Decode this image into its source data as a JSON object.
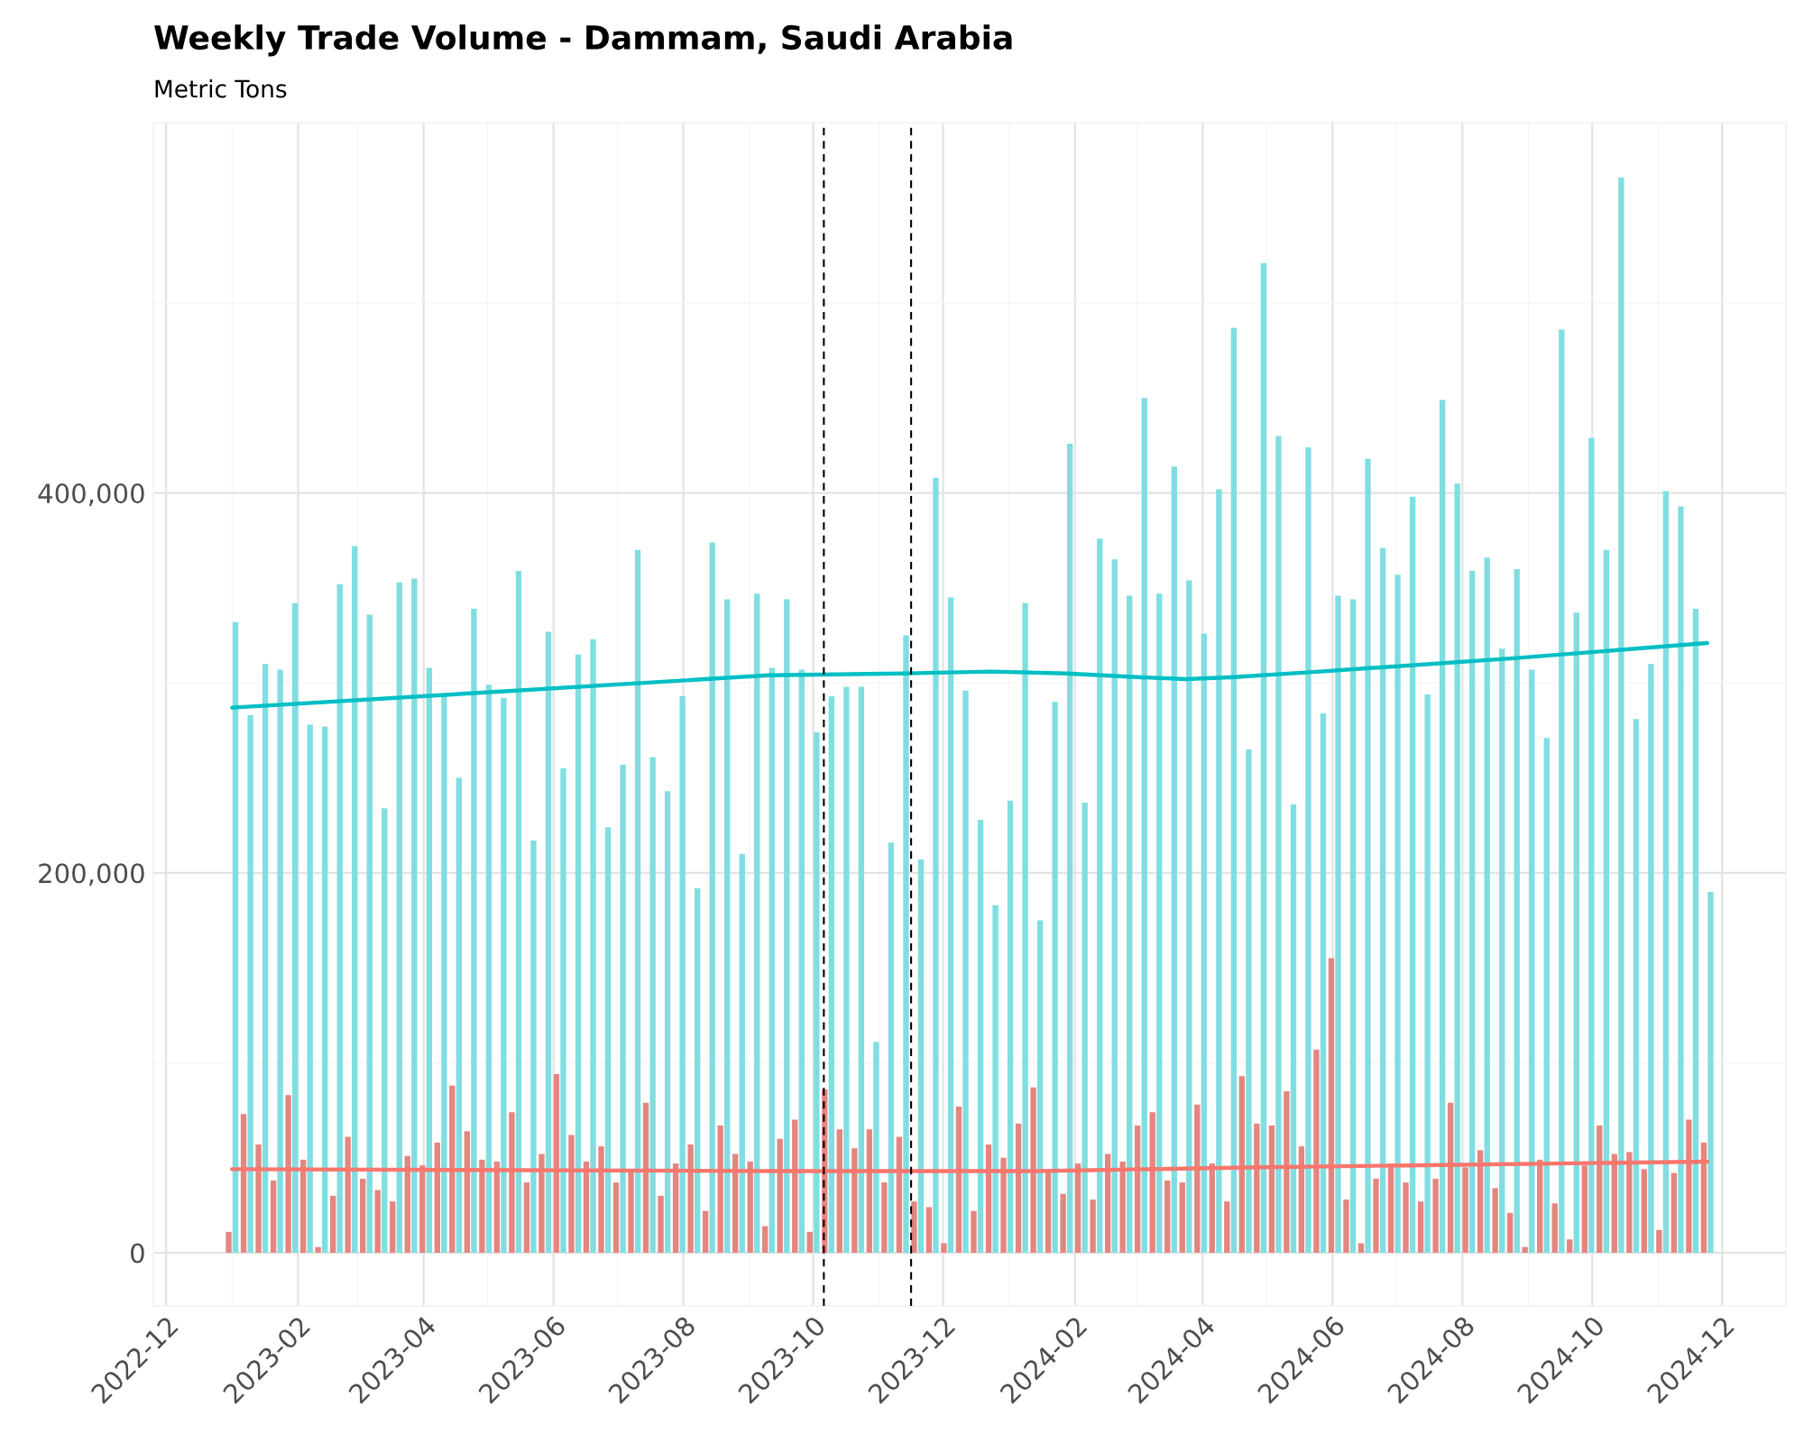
{
  "chart_data": {
    "type": "bar",
    "title": "Weekly Trade Volume - Dammam, Saudi Arabia",
    "subtitle": "Metric Tons",
    "x": [
      "2023-01-01",
      "2023-01-08",
      "2023-01-15",
      "2023-01-22",
      "2023-01-29",
      "2023-02-05",
      "2023-02-12",
      "2023-02-19",
      "2023-02-26",
      "2023-03-05",
      "2023-03-12",
      "2023-03-19",
      "2023-03-26",
      "2023-04-02",
      "2023-04-09",
      "2023-04-16",
      "2023-04-23",
      "2023-04-30",
      "2023-05-07",
      "2023-05-14",
      "2023-05-21",
      "2023-05-28",
      "2023-06-04",
      "2023-06-11",
      "2023-06-18",
      "2023-06-25",
      "2023-07-02",
      "2023-07-09",
      "2023-07-16",
      "2023-07-23",
      "2023-07-30",
      "2023-08-06",
      "2023-08-13",
      "2023-08-20",
      "2023-08-27",
      "2023-09-03",
      "2023-09-10",
      "2023-09-17",
      "2023-09-24",
      "2023-10-01",
      "2023-10-08",
      "2023-10-15",
      "2023-10-22",
      "2023-10-29",
      "2023-11-05",
      "2023-11-12",
      "2023-11-19",
      "2023-11-26",
      "2023-12-03",
      "2023-12-10",
      "2023-12-17",
      "2023-12-24",
      "2023-12-31",
      "2024-01-07",
      "2024-01-14",
      "2024-01-21",
      "2024-01-28",
      "2024-02-04",
      "2024-02-11",
      "2024-02-18",
      "2024-02-25",
      "2024-03-03",
      "2024-03-10",
      "2024-03-17",
      "2024-03-24",
      "2024-03-31",
      "2024-04-07",
      "2024-04-14",
      "2024-04-21",
      "2024-04-28",
      "2024-05-05",
      "2024-05-12",
      "2024-05-19",
      "2024-05-26",
      "2024-06-02",
      "2024-06-09",
      "2024-06-16",
      "2024-06-23",
      "2024-06-30",
      "2024-07-07",
      "2024-07-14",
      "2024-07-21",
      "2024-07-28",
      "2024-08-04",
      "2024-08-11",
      "2024-08-18",
      "2024-08-25",
      "2024-09-01",
      "2024-09-08",
      "2024-09-15",
      "2024-09-22",
      "2024-09-29",
      "2024-10-06",
      "2024-10-13",
      "2024-10-20",
      "2024-10-27",
      "2024-11-03",
      "2024-11-10",
      "2024-11-17",
      "2024-11-24"
    ],
    "series": [
      {
        "color": "#e3867f",
        "values": [
          11000,
          73000,
          57000,
          38000,
          83000,
          49000,
          3000,
          30000,
          61000,
          39000,
          33000,
          27000,
          51000,
          46000,
          58000,
          88000,
          64000,
          49000,
          48000,
          74000,
          37000,
          52000,
          94000,
          62000,
          48000,
          56000,
          37000,
          44000,
          79000,
          30000,
          47000,
          57000,
          22000,
          67000,
          52000,
          48000,
          14000,
          60000,
          70000,
          11000,
          86000,
          65000,
          55000,
          65000,
          37000,
          61000,
          27000,
          24000,
          5000,
          77000,
          22000,
          57000,
          50000,
          68000,
          87000,
          44000,
          31000,
          47000,
          28000,
          52000,
          48000,
          67000,
          74000,
          38000,
          37000,
          78000,
          47000,
          27000,
          93000,
          68000,
          67000,
          85000,
          56000,
          107000,
          155000,
          28000,
          5000,
          39000,
          47000,
          37000,
          27000,
          39000,
          79000,
          45000,
          54000,
          34000,
          21000,
          3000,
          49000,
          26000,
          7000,
          46000,
          67000,
          52000,
          53000,
          44000,
          12000,
          42000,
          70000,
          58000
        ]
      },
      {
        "color": "#80dee1",
        "values": [
          332000,
          283000,
          310000,
          307000,
          342000,
          278000,
          277000,
          352000,
          372000,
          336000,
          234000,
          353000,
          355000,
          308000,
          293000,
          250000,
          339000,
          299000,
          292000,
          359000,
          217000,
          327000,
          255000,
          315000,
          323000,
          224000,
          257000,
          370000,
          261000,
          243000,
          293000,
          192000,
          374000,
          344000,
          210000,
          347000,
          308000,
          344000,
          307000,
          274000,
          293000,
          298000,
          298000,
          111000,
          216000,
          325000,
          207000,
          408000,
          345000,
          296000,
          228000,
          183000,
          238000,
          342000,
          175000,
          290000,
          426000,
          237000,
          376000,
          365000,
          346000,
          450000,
          347000,
          414000,
          354000,
          326000,
          402000,
          487000,
          265000,
          521000,
          430000,
          236000,
          424000,
          284000,
          346000,
          344000,
          418000,
          371000,
          357000,
          398000,
          294000,
          449000,
          405000,
          359000,
          366000,
          318000,
          360000,
          307000,
          271000,
          486000,
          337000,
          429000,
          370000,
          566000,
          281000,
          310000,
          401000,
          393000,
          339000,
          190000
        ]
      },
      {
        "type": "line",
        "color": "#00bfc4",
        "x": [
          "2023-01-01",
          "2023-04-30",
          "2023-09-10",
          "2023-11-12",
          "2023-12-24",
          "2024-01-28",
          "2024-03-03",
          "2024-03-24",
          "2024-04-14",
          "2024-05-26",
          "2024-08-25",
          "2024-11-24"
        ],
        "values": [
          287000,
          295000,
          304000,
          305000,
          306000,
          305000,
          303000,
          302000,
          303000,
          306000,
          313000,
          321000
        ]
      },
      {
        "type": "line",
        "color": "#f8766d",
        "x": [
          "2023-01-01",
          "2023-09-17",
          "2024-01-14",
          "2024-04-28",
          "2024-07-07",
          "2024-11-24"
        ],
        "values": [
          44000,
          43000,
          43000,
          45000,
          46000,
          48000
        ]
      }
    ],
    "xlim": [
      "2022-11-25",
      "2024-12-31"
    ],
    "xticks": [
      {
        "value": "2022-12",
        "label": "2022-12"
      },
      {
        "value": "2023-01",
        "label": null
      },
      {
        "value": "2023-02",
        "label": "2023-02"
      },
      {
        "value": "2023-03",
        "label": null
      },
      {
        "value": "2023-04",
        "label": "2023-04"
      },
      {
        "value": "2023-05",
        "label": null
      },
      {
        "value": "2023-06",
        "label": "2023-06"
      },
      {
        "value": "2023-07",
        "label": null
      },
      {
        "value": "2023-08",
        "label": "2023-08"
      },
      {
        "value": "2023-09",
        "label": null
      },
      {
        "value": "2023-10",
        "label": "2023-10"
      },
      {
        "value": "2023-11",
        "label": null
      },
      {
        "value": "2023-12",
        "label": "2023-12"
      },
      {
        "value": "2024-01",
        "label": null
      },
      {
        "value": "2024-02",
        "label": "2024-02"
      },
      {
        "value": "2024-03",
        "label": null
      },
      {
        "value": "2024-04",
        "label": "2024-04"
      },
      {
        "value": "2024-05",
        "label": null
      },
      {
        "value": "2024-06",
        "label": "2024-06"
      },
      {
        "value": "2024-07",
        "label": null
      },
      {
        "value": "2024-08",
        "label": "2024-08"
      },
      {
        "value": "2024-09",
        "label": null
      },
      {
        "value": "2024-10",
        "label": "2024-10"
      },
      {
        "value": "2024-11",
        "label": null
      },
      {
        "value": "2024-12",
        "label": "2024-12"
      }
    ],
    "ylim": [
      -28000,
      595000
    ],
    "yticks": [
      0,
      {
        "value": 100000,
        "label": null
      },
      {
        "value": 200000,
        "label": "200,000"
      },
      {
        "value": 300000,
        "label": null
      },
      {
        "value": 400000,
        "label": "400,000"
      },
      {
        "value": 500000,
        "label": null
      }
    ],
    "ref_lines": [
      {
        "axis": "x",
        "value": "2023-10-06",
        "color": "#000000",
        "line_style": "dashed"
      },
      {
        "axis": "x",
        "value": "2023-11-16",
        "color": "#000000",
        "line_style": "dashed"
      }
    ],
    "grid": true
  }
}
